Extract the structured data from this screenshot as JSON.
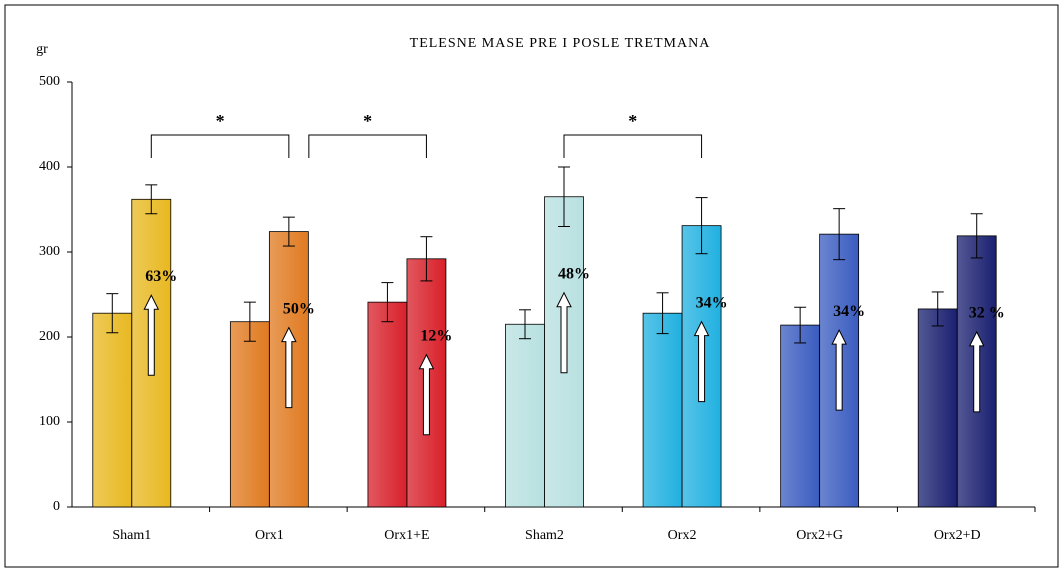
{
  "chart_data": {
    "type": "bar",
    "title": "TELESNE MASE PRE I POSLE TRETMANA",
    "y_label": "gr",
    "categories": [
      "Sham1",
      "Orx1",
      "Orx1+E",
      "Sham2",
      "Orx2",
      "Orx2+G",
      "Orx2+D"
    ],
    "colors": [
      "#e8b820",
      "#e07a20",
      "#d8202a",
      "#b8e0e0",
      "#20b0e0",
      "#3a5cc0",
      "#1a2070"
    ],
    "series": [
      {
        "values": [
          228,
          218,
          241,
          215,
          228,
          214,
          233
        ],
        "errors": [
          23,
          23,
          23,
          17,
          24,
          21,
          20
        ]
      },
      {
        "values": [
          362,
          324,
          292,
          365,
          331,
          321,
          319
        ],
        "errors": [
          17,
          17,
          26,
          35,
          33,
          30,
          26
        ]
      }
    ],
    "annotations": [
      "63%",
      "50%",
      "12%",
      "48%",
      "34%",
      "34%",
      "32 %"
    ],
    "significance": [
      "*",
      "*",
      "*"
    ],
    "ylim": [
      0,
      500
    ],
    "yticks": [
      0,
      100,
      200,
      300,
      400,
      500
    ],
    "grid": false
  }
}
